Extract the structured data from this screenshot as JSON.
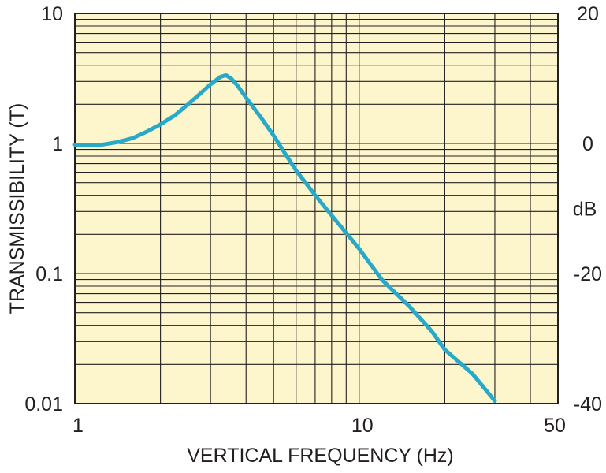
{
  "colors": {
    "plot_background": "#fdf6cc",
    "grid": "#231f20",
    "curve": "#29a9c8",
    "text": "#231f20"
  },
  "chart_data": {
    "type": "line",
    "xlabel": "VERTICAL FREQUENCY (Hz)",
    "ylabel": "TRANSMISSIBILITY (T)",
    "y2label": "dB",
    "x_scale": "log",
    "y_scale": "log",
    "xlim": [
      1,
      50
    ],
    "ylim": [
      0.01,
      10
    ],
    "y2lim": [
      -40,
      20
    ],
    "grid": true,
    "x_ticks": [
      {
        "value": 1,
        "label": "1"
      },
      {
        "value": 10,
        "label": "10"
      },
      {
        "value": 50,
        "label": "50"
      }
    ],
    "y_ticks": [
      {
        "value": 10,
        "label": "10"
      },
      {
        "value": 1,
        "label": "1"
      },
      {
        "value": 0.1,
        "label": "0.1"
      },
      {
        "value": 0.01,
        "label": "0.01"
      }
    ],
    "y2_ticks": [
      {
        "value": 20,
        "label": "20"
      },
      {
        "value": 0,
        "label": "0"
      },
      {
        "value": -20,
        "label": "-20"
      },
      {
        "value": -40,
        "label": "-40"
      }
    ],
    "series": [
      {
        "x": [
          1.0,
          1.1,
          1.25,
          1.4,
          1.6,
          1.8,
          2.0,
          2.25,
          2.5,
          2.75,
          3.0,
          3.25,
          3.4,
          3.55,
          3.75,
          4.0,
          4.5,
          5.0,
          5.5,
          6.0,
          7.0,
          8.0,
          10.0,
          12.0,
          15.0,
          18.0,
          20.0,
          25.0,
          30.0
        ],
        "y": [
          0.98,
          0.97,
          0.98,
          1.02,
          1.1,
          1.24,
          1.4,
          1.65,
          2.0,
          2.4,
          2.85,
          3.25,
          3.35,
          3.15,
          2.75,
          2.25,
          1.6,
          1.15,
          0.83,
          0.62,
          0.4,
          0.28,
          0.155,
          0.09,
          0.056,
          0.036,
          0.026,
          0.017,
          0.0105
        ]
      }
    ]
  }
}
